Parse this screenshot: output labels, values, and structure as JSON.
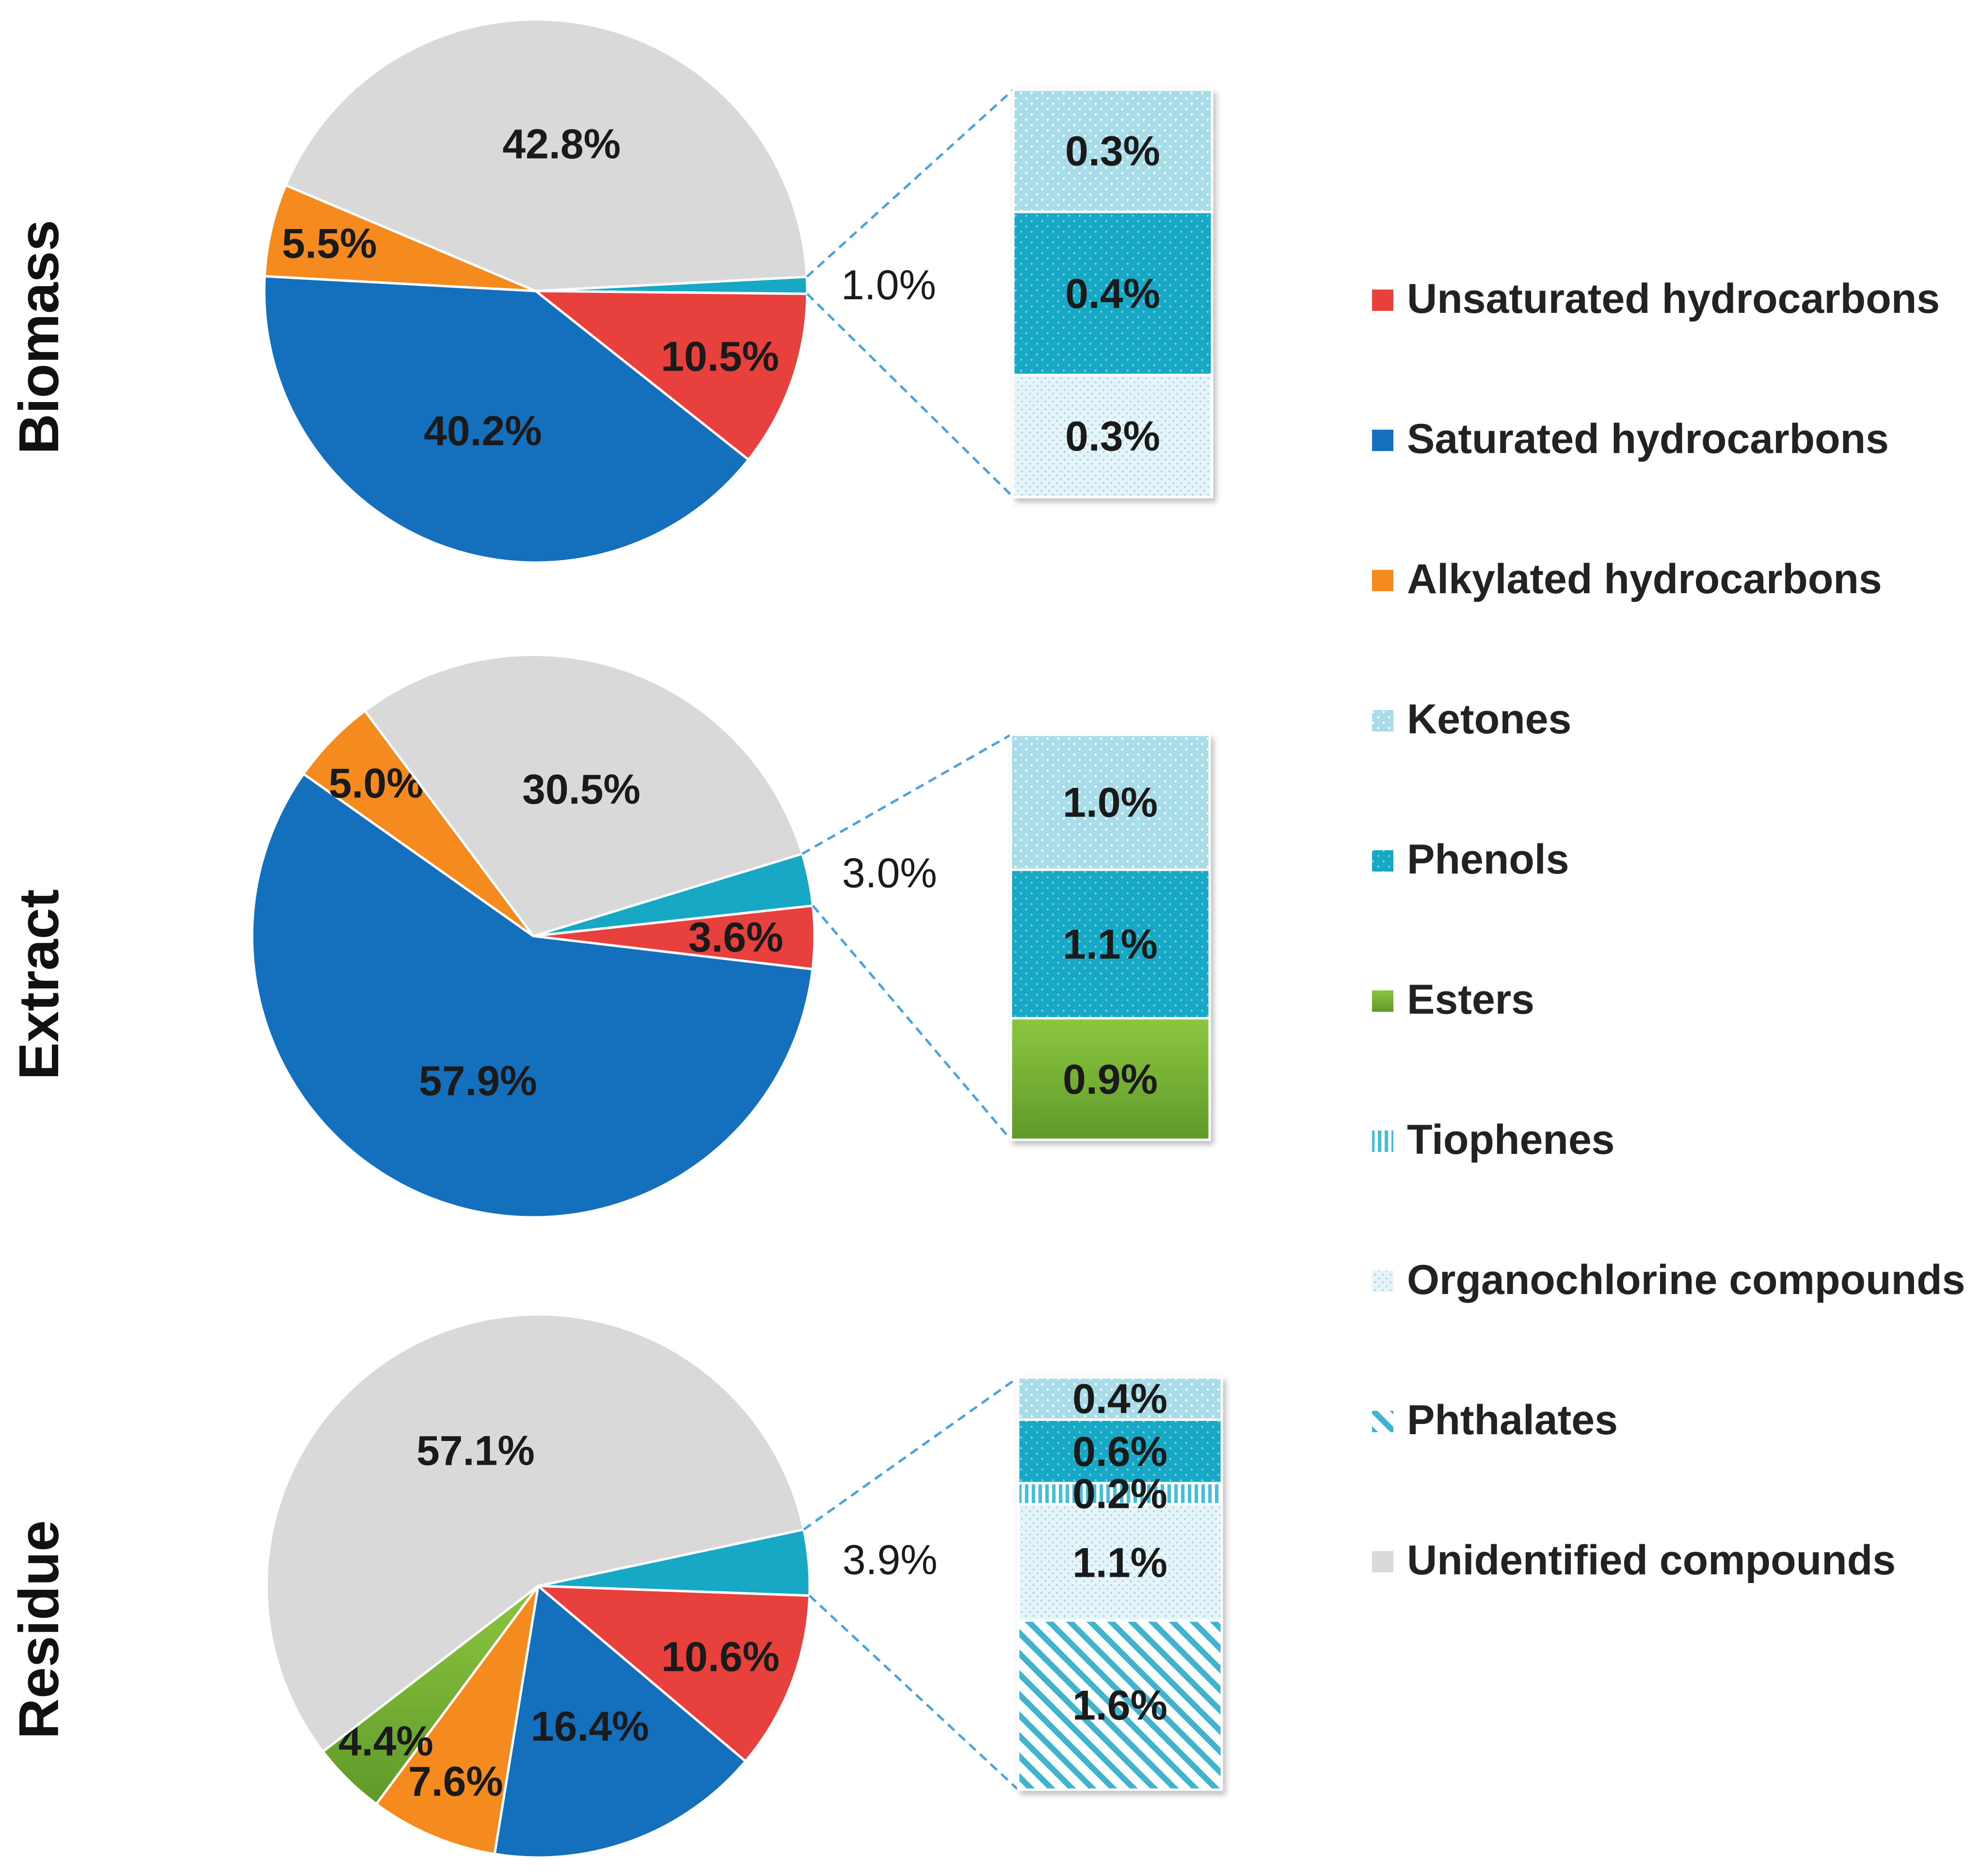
{
  "colors": {
    "unsaturated": "#e8403c",
    "saturated": "#1470bd",
    "alkylated": "#f58b1f",
    "ketones": "#a8dce9",
    "phenols": "#16a8c4",
    "esters": "#7ab83b",
    "tiophenes": "#4cbcd6",
    "organochlorine": "#d4eef5",
    "phthalates": "#3fb3cf",
    "unidentified": "#d9d9d9"
  },
  "legend": [
    {
      "key": "unsaturated",
      "label": "Unsaturated hydrocarbons"
    },
    {
      "key": "saturated",
      "label": "Saturated hydrocarbons"
    },
    {
      "key": "alkylated",
      "label": "Alkylated hydrocarbons"
    },
    {
      "key": "ketones",
      "label": "Ketones"
    },
    {
      "key": "phenols",
      "label": "Phenols"
    },
    {
      "key": "esters",
      "label": "Esters"
    },
    {
      "key": "tiophenes",
      "label": "Tiophenes"
    },
    {
      "key": "organochlorine",
      "label": "Organochlorine compounds"
    },
    {
      "key": "phthalates",
      "label": "Phthalates"
    },
    {
      "key": "unidentified",
      "label": "Unidentified compounds"
    }
  ],
  "chart_data": [
    {
      "type": "pie",
      "title": "Biomass",
      "slices": [
        {
          "key": "other",
          "value": 1.0,
          "label": "1.0%"
        },
        {
          "key": "unsaturated",
          "value": 10.5,
          "label": "10.5%"
        },
        {
          "key": "saturated",
          "value": 40.2,
          "label": "40.2%"
        },
        {
          "key": "alkylated",
          "value": 5.5,
          "label": "5.5%"
        },
        {
          "key": "unidentified",
          "value": 42.8,
          "label": "42.8%"
        }
      ],
      "breakdown": [
        {
          "key": "ketones",
          "value": 0.3,
          "label": "0.3%"
        },
        {
          "key": "phenols",
          "value": 0.4,
          "label": "0.4%"
        },
        {
          "key": "organochlorine",
          "value": 0.3,
          "label": "0.3%"
        }
      ]
    },
    {
      "type": "pie",
      "title": "Extract",
      "slices": [
        {
          "key": "other",
          "value": 3.0,
          "label": "3.0%"
        },
        {
          "key": "unsaturated",
          "value": 3.6,
          "label": "3.6%"
        },
        {
          "key": "saturated",
          "value": 57.9,
          "label": "57.9%"
        },
        {
          "key": "alkylated",
          "value": 5.0,
          "label": "5.0%"
        },
        {
          "key": "unidentified",
          "value": 30.5,
          "label": "30.5%"
        }
      ],
      "breakdown": [
        {
          "key": "ketones",
          "value": 1.0,
          "label": "1.0%"
        },
        {
          "key": "phenols",
          "value": 1.1,
          "label": "1.1%"
        },
        {
          "key": "esters",
          "value": 0.9,
          "label": "0.9%"
        }
      ]
    },
    {
      "type": "pie",
      "title": "Residue",
      "slices": [
        {
          "key": "other",
          "value": 3.9,
          "label": "3.9%"
        },
        {
          "key": "unsaturated",
          "value": 10.6,
          "label": "10.6%"
        },
        {
          "key": "saturated",
          "value": 16.4,
          "label": "16.4%"
        },
        {
          "key": "alkylated",
          "value": 7.6,
          "label": "7.6%"
        },
        {
          "key": "esters",
          "value": 4.4,
          "label": "4.4%"
        },
        {
          "key": "unidentified",
          "value": 57.1,
          "label": "57.1%"
        }
      ],
      "breakdown": [
        {
          "key": "ketones",
          "value": 0.4,
          "label": "0.4%"
        },
        {
          "key": "phenols",
          "value": 0.6,
          "label": "0.6%"
        },
        {
          "key": "tiophenes",
          "value": 0.2,
          "label": "0.2%"
        },
        {
          "key": "organochlorine",
          "value": 1.1,
          "label": "1.1%"
        },
        {
          "key": "phthalates",
          "value": 1.6,
          "label": "1.6%"
        }
      ]
    }
  ]
}
